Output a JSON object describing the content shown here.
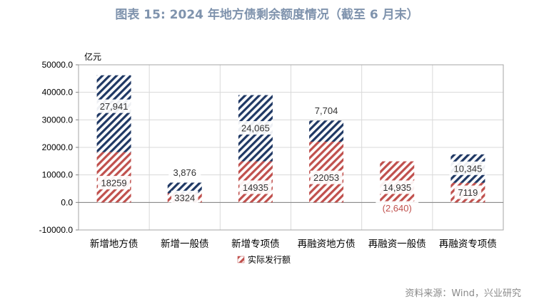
{
  "title": "图表 15: 2024 年地方债剩余额度情况（截至 6 月末）",
  "source": "资料来源：Wind，兴业研究",
  "colors": {
    "issued": "#c0504d",
    "remaining": "#1f3864",
    "frame": "#a6a6a6",
    "grid": "#d9d9d9"
  },
  "chart_data": {
    "type": "bar",
    "stacked": true,
    "unit_label": "亿元",
    "ylim": [
      -10000,
      50000
    ],
    "yticks": [
      "50000.0",
      "40000.0",
      "30000.0",
      "20000.0",
      "10000.0",
      "0.0",
      "-10000.0"
    ],
    "ytick_values": [
      50000,
      40000,
      30000,
      20000,
      10000,
      0,
      -10000
    ],
    "grid": true,
    "legend": {
      "position": "bottom",
      "entries": [
        "实际发行额"
      ]
    },
    "categories": [
      "新增地方债",
      "新增一般债",
      "新增专项债",
      "再融资地方债",
      "再融资一般债",
      "再融资专项债"
    ],
    "series": [
      {
        "name": "实际发行额",
        "pattern": "red-hatch",
        "values": [
          18259,
          3324,
          14935,
          22053,
          14935,
          7119
        ],
        "labels": [
          "18259",
          "3324",
          "14935",
          "22053",
          "14,935",
          "7119"
        ]
      },
      {
        "pattern": "navy-hatch",
        "values": [
          27941,
          3876,
          24065,
          7704,
          -2640,
          10345
        ],
        "labels": [
          "27,941",
          "3,876",
          "24,065",
          "7,704",
          "(2,640)",
          "10,345"
        ]
      }
    ]
  }
}
